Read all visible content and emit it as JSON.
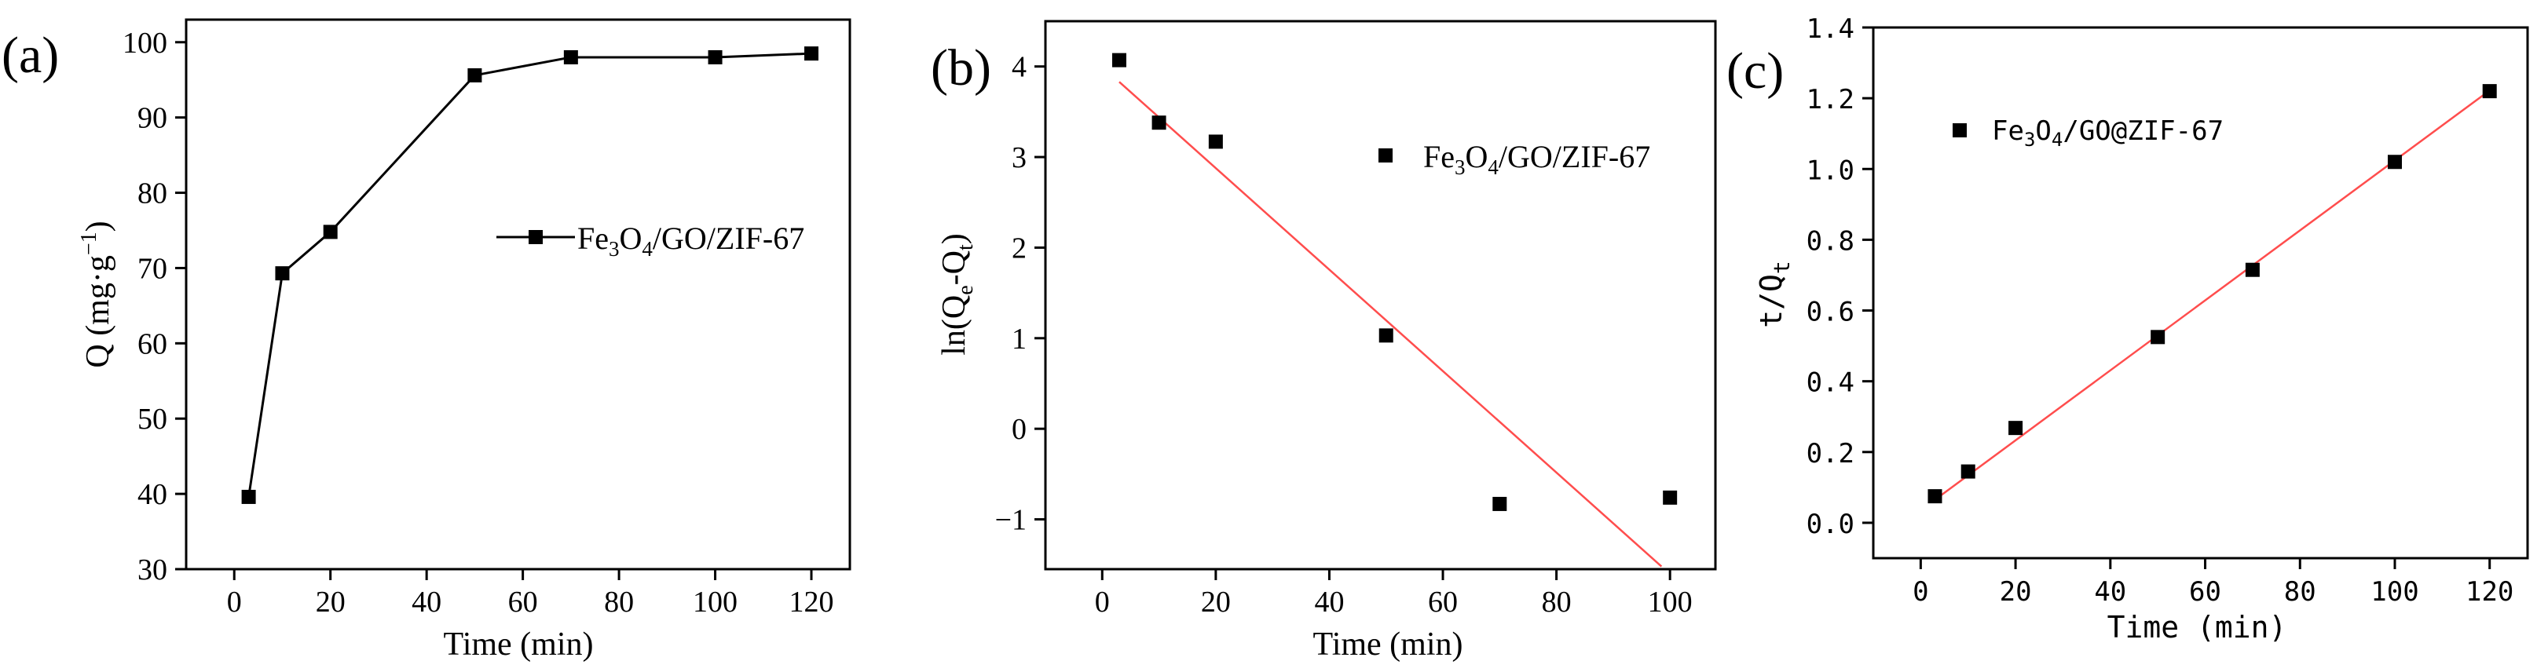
{
  "chart_data": [
    {
      "panel": "(a)",
      "type": "line",
      "xlabel": "Time (min)",
      "ylabel": "Q (mg·g",
      "ylabel_sup": "−1",
      "ylabel_end": ")",
      "xlim": [
        -10,
        128
      ],
      "ylim": [
        30,
        103
      ],
      "xticks": [
        0,
        20,
        40,
        60,
        80,
        100,
        120
      ],
      "yticks": [
        30,
        40,
        50,
        60,
        70,
        80,
        90,
        100
      ],
      "legend": {
        "position": "center-right",
        "parts": [
          "Fe",
          "3",
          "O",
          "4",
          "/GO/ZIF-67"
        ]
      },
      "series": [
        {
          "name": "Fe3O4/GO/ZIF-67",
          "marker": "square",
          "x": [
            3,
            10,
            20,
            50,
            70,
            100,
            120
          ],
          "y": [
            39.6,
            69.3,
            74.8,
            95.6,
            98.0,
            98.0,
            98.5
          ]
        }
      ]
    },
    {
      "panel": "(b)",
      "type": "scatter",
      "xlabel": "Time (min)",
      "ylabel": "ln(Q",
      "ylabel_sub1": "e",
      "ylabel_mid": "-Q",
      "ylabel_sub2": "t",
      "ylabel_end": ")",
      "xlim": [
        -10,
        108
      ],
      "ylim": [
        -1.55,
        4.5
      ],
      "xticks": [
        0,
        20,
        40,
        60,
        80,
        100
      ],
      "yticks": [
        -1,
        0,
        1,
        2,
        3,
        4
      ],
      "ytick_labels": [
        "−1",
        "0",
        "1",
        "2",
        "3",
        "4"
      ],
      "legend": {
        "position": "top-right",
        "parts": [
          "Fe",
          "3",
          "O",
          "4",
          "/GO/ZIF-67"
        ]
      },
      "series": [
        {
          "name": "Fe3O4/GO/ZIF-67",
          "marker": "square",
          "x": [
            3,
            10,
            20,
            50,
            70,
            100
          ],
          "y": [
            4.07,
            3.38,
            3.17,
            1.03,
            -0.83,
            -0.76
          ]
        }
      ],
      "fit": {
        "x": [
          3,
          98.5
        ],
        "y": [
          3.83,
          -1.52
        ]
      }
    },
    {
      "panel": "(c)",
      "type": "scatter",
      "xlabel": "Time (min)",
      "ylabel": "t/Q",
      "ylabel_sub": "t",
      "xlim": [
        -10,
        128
      ],
      "ylim": [
        -0.1,
        1.4
      ],
      "xticks": [
        0,
        20,
        40,
        60,
        80,
        100,
        120
      ],
      "yticks": [
        0.0,
        0.2,
        0.4,
        0.6,
        0.8,
        1.0,
        1.2,
        1.4
      ],
      "ytick_labels": [
        "0.0",
        "0.2",
        "0.4",
        "0.6",
        "0.8",
        "1.0",
        "1.2",
        "1.4"
      ],
      "legend": {
        "position": "top-left",
        "parts": [
          "Fe",
          "3",
          "O",
          "4",
          "/GO@ZIF-67"
        ]
      },
      "series": [
        {
          "name": "Fe3O4/GO@ZIF-67",
          "marker": "square",
          "x": [
            3,
            10,
            20,
            50,
            70,
            100,
            120
          ],
          "y": [
            0.075,
            0.145,
            0.268,
            0.525,
            0.715,
            1.02,
            1.22
          ]
        }
      ],
      "fit": {
        "x": [
          3,
          120
        ],
        "y": [
          0.065,
          1.222
        ]
      }
    }
  ],
  "colors": {
    "axis": "#000000",
    "marker": "#000000",
    "line": "#000000",
    "fit": "#ff4d4d"
  }
}
